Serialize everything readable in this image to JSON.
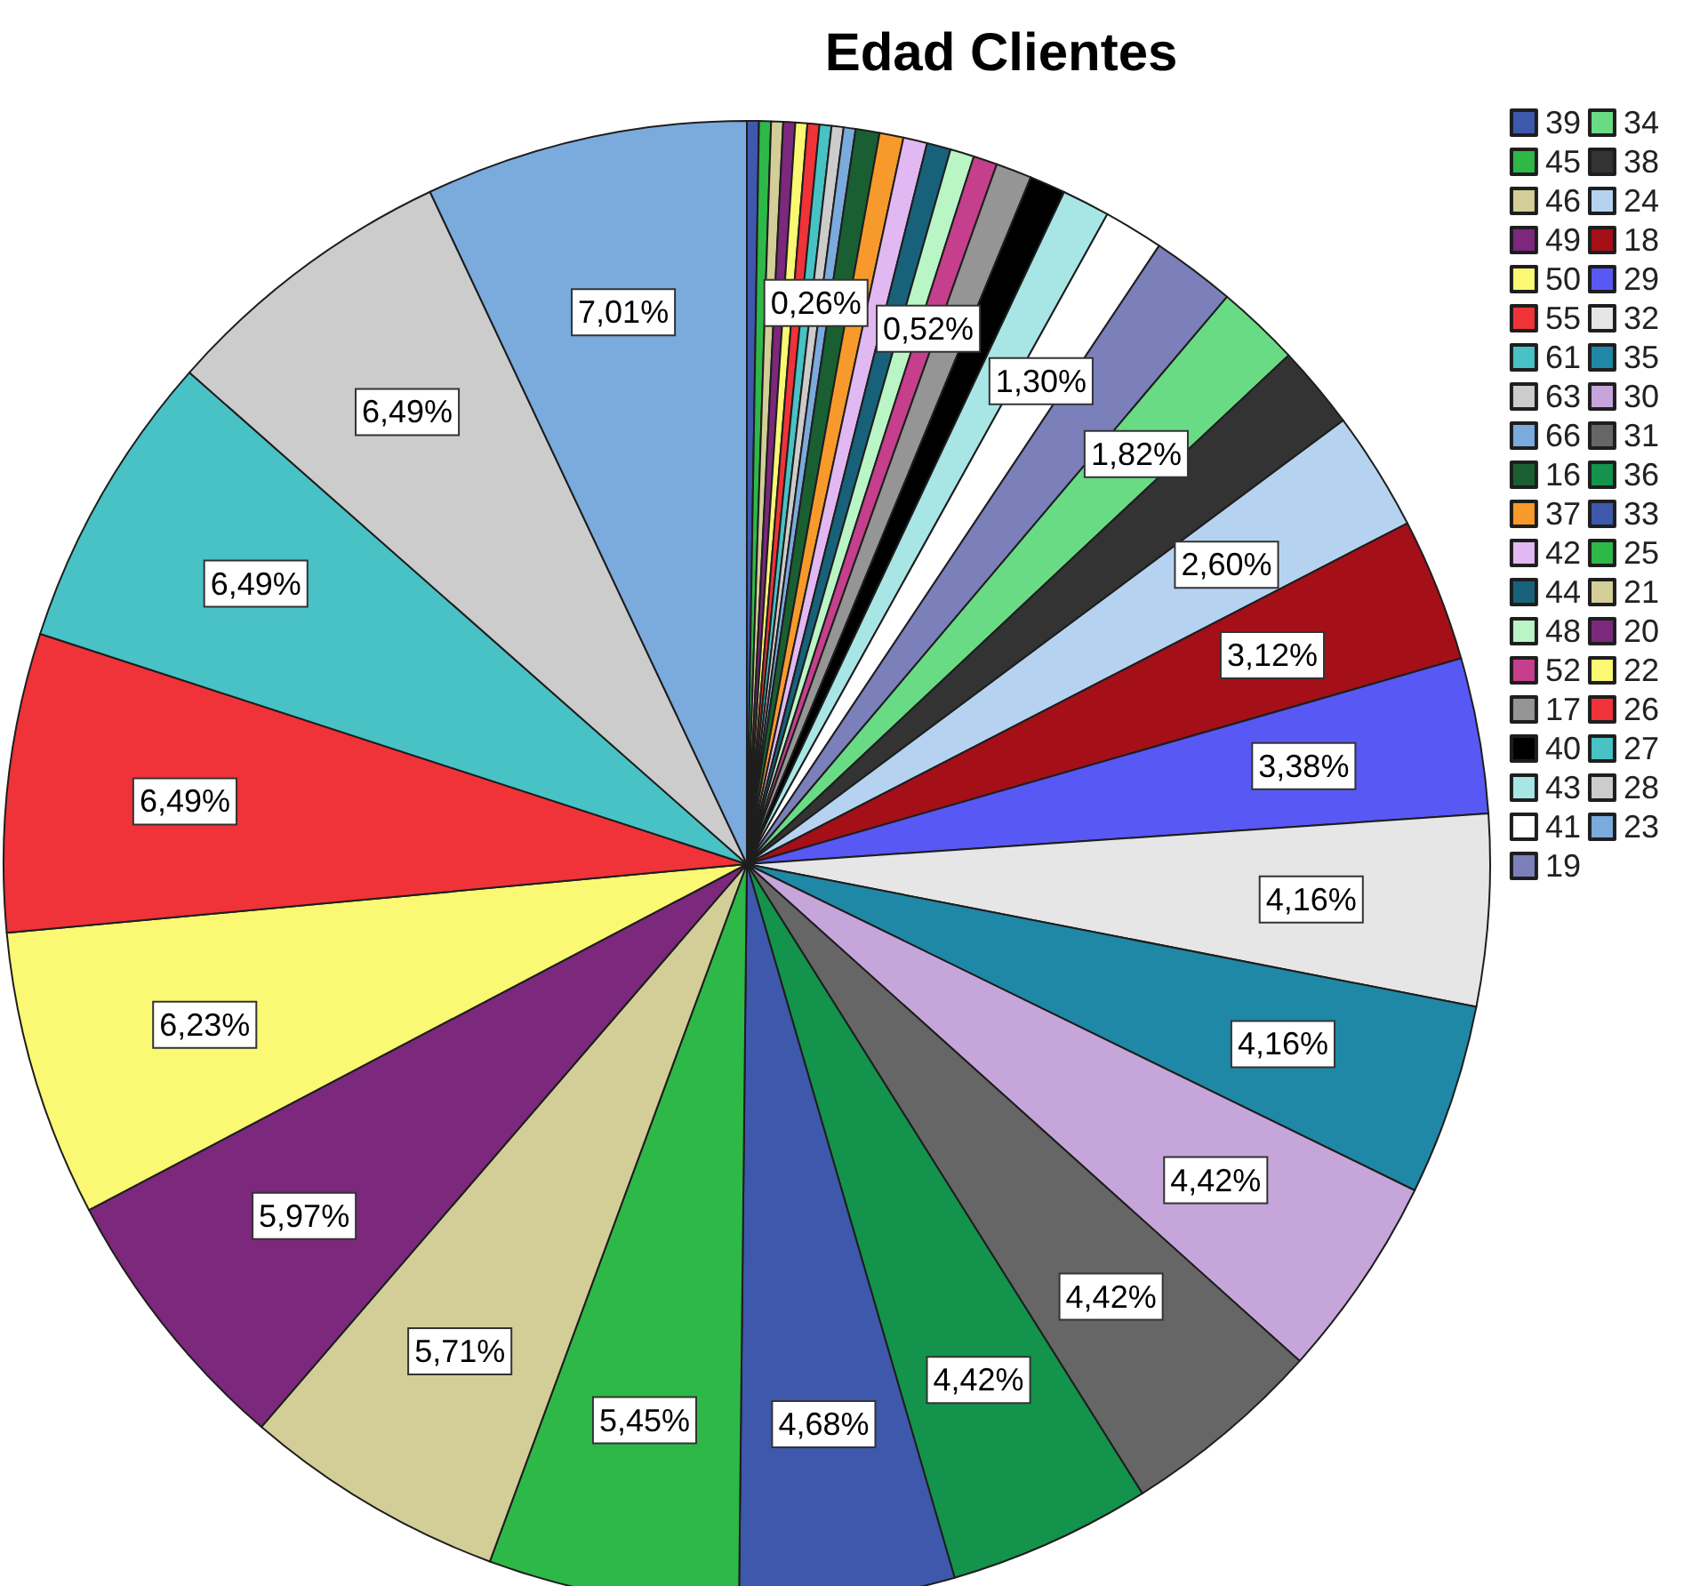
{
  "chart_data": {
    "type": "pie",
    "title": "Edad Clientes",
    "categories": [
      "39",
      "45",
      "46",
      "49",
      "50",
      "55",
      "61",
      "63",
      "66",
      "16",
      "37",
      "42",
      "44",
      "48",
      "52",
      "17",
      "40",
      "43",
      "41",
      "19",
      "34",
      "38",
      "24",
      "18",
      "29",
      "32",
      "35",
      "30",
      "31",
      "36",
      "33",
      "25",
      "21",
      "20",
      "22",
      "26",
      "27",
      "28",
      "23"
    ],
    "values": [
      0.26,
      0.26,
      0.26,
      0.26,
      0.26,
      0.26,
      0.26,
      0.26,
      0.26,
      0.52,
      0.52,
      0.52,
      0.52,
      0.52,
      0.52,
      0.78,
      0.78,
      1.04,
      1.3,
      1.82,
      1.82,
      1.82,
      2.6,
      3.12,
      3.38,
      4.16,
      4.16,
      4.42,
      4.42,
      4.42,
      4.68,
      5.45,
      5.71,
      5.97,
      6.23,
      6.49,
      6.49,
      6.49,
      7.01
    ],
    "colors": [
      "#3e58ac",
      "#2eb848",
      "#d3ce97",
      "#7c287d",
      "#fbf873",
      "#ef3338",
      "#48c2c5",
      "#cccccc",
      "#7baadd",
      "#1a5f31",
      "#f89a2b",
      "#e2b8f2",
      "#17627a",
      "#baf5c6",
      "#c53f8c",
      "#959595",
      "#000000",
      "#a8e6e6",
      "#ffffff",
      "#7b7fba",
      "#6adb85",
      "#333333",
      "#b5d3f0",
      "#a50f18",
      "#5858f5",
      "#e6e6e6",
      "#1f88a6",
      "#c6a6da",
      "#666666",
      "#13934b",
      "#3e58ac",
      "#2eb848",
      "#d3ce97",
      "#7c287d",
      "#fbf873",
      "#ef3338",
      "#48c2c5",
      "#cccccc",
      "#7baadd"
    ],
    "value_labels": [
      null,
      null,
      null,
      null,
      null,
      null,
      null,
      "0,26%",
      null,
      null,
      null,
      null,
      null,
      null,
      "0,52%",
      null,
      null,
      null,
      "1,30%",
      null,
      "1,82%",
      null,
      "2,60%",
      "3,12%",
      "3,38%",
      "4,16%",
      "4,16%",
      "4,42%",
      "4,42%",
      "4,42%",
      "4,68%",
      "5,45%",
      "5,71%",
      "5,97%",
      "6,23%",
      "6,49%",
      "6,49%",
      "6,49%",
      "7,01%"
    ],
    "legend": "top right"
  }
}
